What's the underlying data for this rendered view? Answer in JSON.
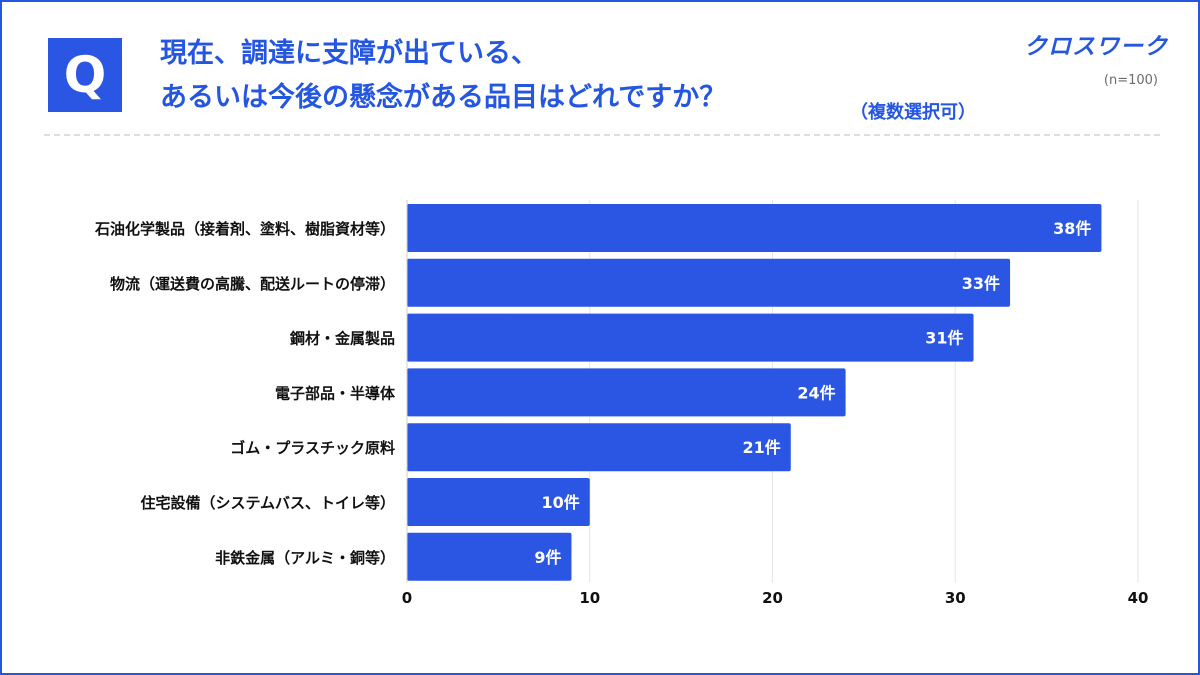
{
  "header": {
    "q_letter": "Q",
    "title_line1": "現在、調達に支障が出ている、",
    "title_line2": "あるいは今後の懸念がある品目はどれですか？",
    "note": "（複数選択可）",
    "brand": "クロスワーク",
    "sample": "(n=100)"
  },
  "colors": {
    "accent": "#2456e0",
    "bar": "#2a56e3",
    "bar_label": "#ffffff",
    "grid": "#e6e6e6"
  },
  "chart_data": {
    "type": "bar",
    "orientation": "horizontal",
    "categories": [
      "石油化学製品（接着剤、塗料、樹脂資材等）",
      "物流（運送費の高騰、配送ルートの停滞）",
      "鋼材・金属製品",
      "電子部品・半導体",
      "ゴム・プラスチック原料",
      "住宅設備（システムバス、トイレ等）",
      "非鉄金属（アルミ・銅等）"
    ],
    "values": [
      38,
      33,
      31,
      24,
      21,
      10,
      9
    ],
    "data_labels": [
      "38件",
      "33件",
      "31件",
      "24件",
      "21件",
      "10件",
      "9件"
    ],
    "x_ticks": [
      "0",
      "10",
      "20",
      "30",
      "40"
    ],
    "xlim": [
      0,
      40
    ],
    "grid": true
  }
}
